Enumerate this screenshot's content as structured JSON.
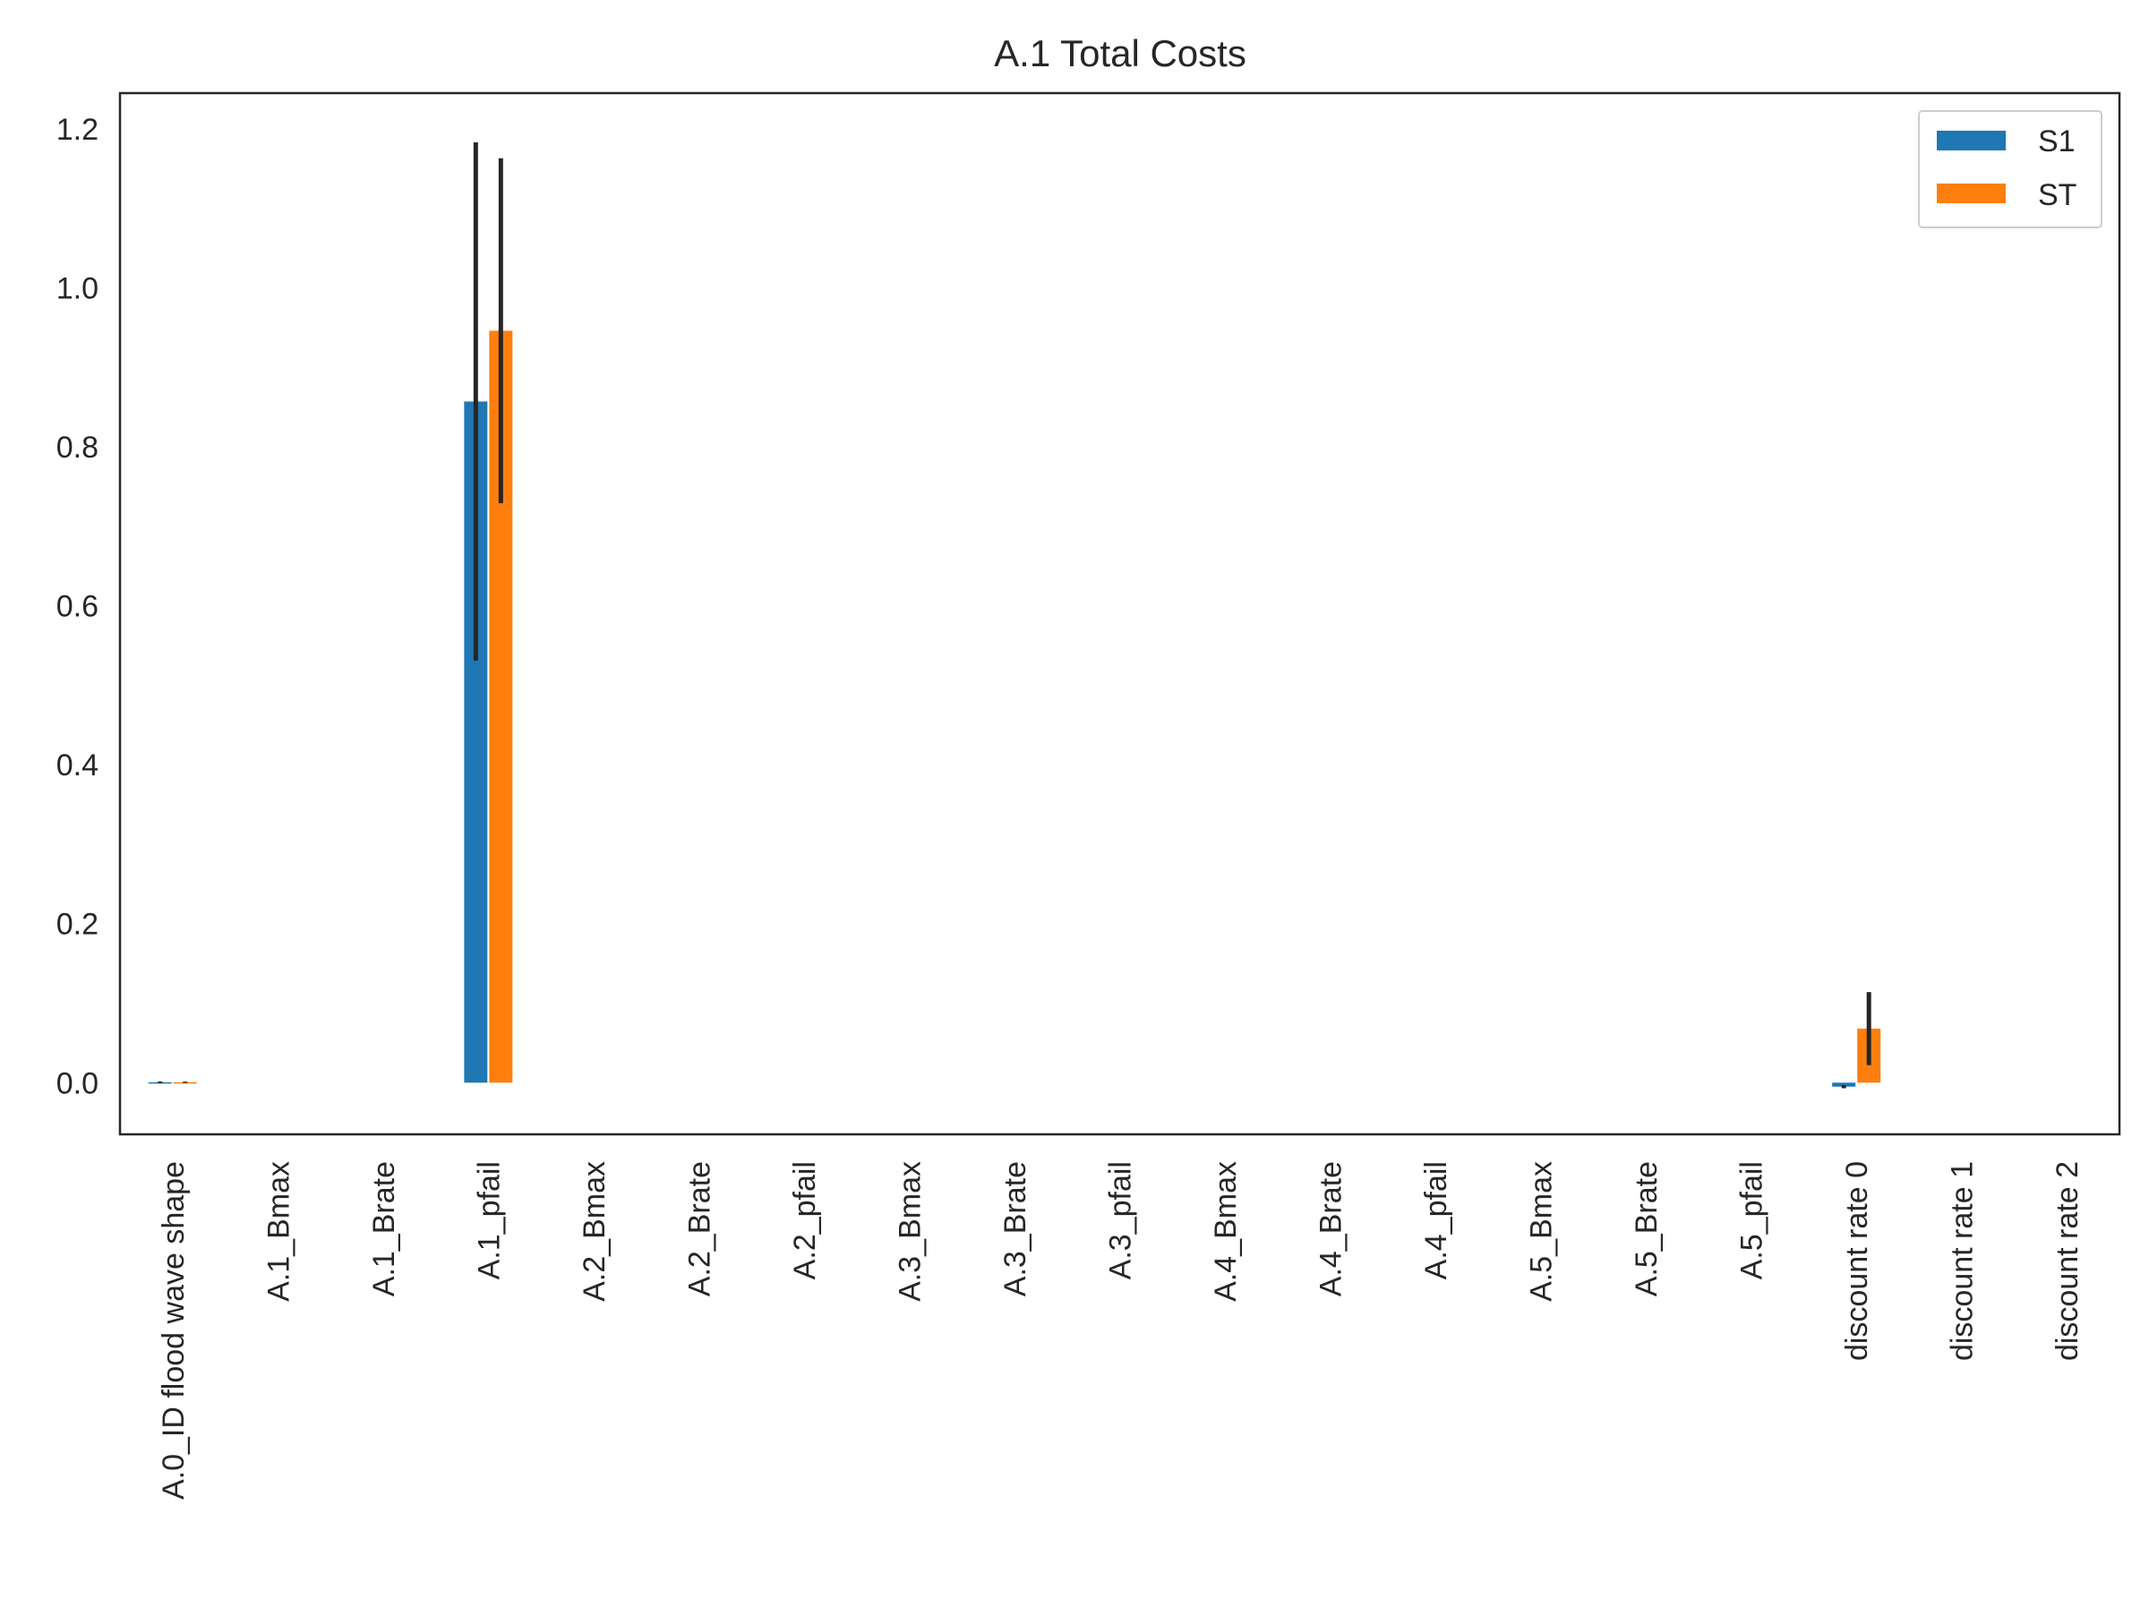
{
  "chart_data": {
    "type": "bar",
    "title": "A.1 Total Costs",
    "xlabel": "",
    "ylabel": "",
    "ylim": [
      -0.065,
      1.245
    ],
    "yticks": [
      "0.0",
      "0.2",
      "0.4",
      "0.6",
      "0.8",
      "1.0",
      "1.2"
    ],
    "grid": false,
    "legend_position": "top-right",
    "categories": [
      "A.0_ID flood wave shape",
      "A.1_Bmax",
      "A.1_Brate",
      "A.1_pfail",
      "A.2_Bmax",
      "A.2_Brate",
      "A.2_pfail",
      "A.3_Bmax",
      "A.3_Brate",
      "A.3_pfail",
      "A.4_Bmax",
      "A.4_Brate",
      "A.4_pfail",
      "A.5_Bmax",
      "A.5_Brate",
      "A.5_pfail",
      "discount rate 0",
      "discount rate 1",
      "discount rate 2"
    ],
    "series": [
      {
        "name": "S1",
        "color": "#1f77b4",
        "values": [
          0.0005,
          0,
          0,
          0.857,
          0,
          0,
          0,
          0,
          0,
          0,
          0,
          0,
          0,
          0,
          0,
          0,
          -0.005,
          0,
          0
        ],
        "errors": [
          0.001,
          0,
          0,
          0.326,
          0,
          0,
          0,
          0,
          0,
          0,
          0,
          0,
          0,
          0,
          0,
          0,
          0.002,
          0,
          0
        ]
      },
      {
        "name": "ST",
        "color": "#ff7f0e",
        "values": [
          0.0005,
          0,
          0,
          0.946,
          0,
          0,
          0,
          0,
          0,
          0,
          0,
          0,
          0,
          0,
          0,
          0,
          0.068,
          0,
          0
        ],
        "errors": [
          0.0008,
          0,
          0,
          0.217,
          0,
          0,
          0,
          0,
          0,
          0,
          0,
          0,
          0,
          0,
          0,
          0,
          0.046,
          0,
          0
        ]
      }
    ]
  }
}
